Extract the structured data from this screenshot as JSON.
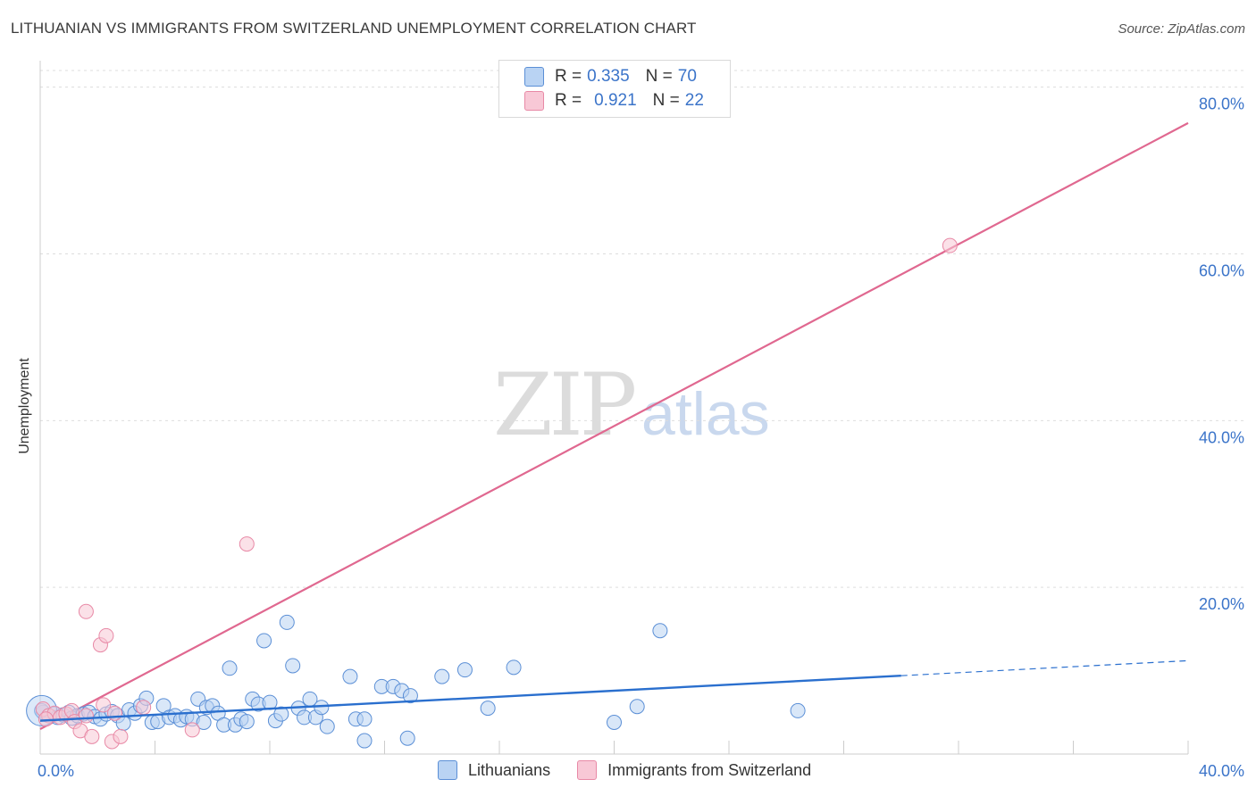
{
  "title": "LITHUANIAN VS IMMIGRANTS FROM SWITZERLAND UNEMPLOYMENT CORRELATION CHART",
  "source": "Source: ZipAtlas.com",
  "watermark": {
    "zip": "ZIP",
    "atlas": "atlas"
  },
  "legend": {
    "blue": {
      "r_label": "R =",
      "r_value": "0.335",
      "n_label": "N =",
      "n_value": "70"
    },
    "pink": {
      "r_label": "R =",
      "r_value": "0.921",
      "n_label": "N =",
      "n_value": "22"
    }
  },
  "bottom_legend": {
    "blue": "Lithuanians",
    "pink": "Immigrants from Switzerland"
  },
  "colors": {
    "blue_fill": "#b9d3f3",
    "blue_stroke": "#5b8fd6",
    "blue_line": "#2a6fce",
    "pink_fill": "#f8c8d6",
    "pink_stroke": "#e889a6",
    "pink_line": "#e06890",
    "tick_label": "#3b74c9",
    "grid": "#dddddd"
  },
  "chart_data": {
    "type": "scatter",
    "title": "LITHUANIAN VS IMMIGRANTS FROM SWITZERLAND UNEMPLOYMENT CORRELATION CHART",
    "xlabel": "",
    "ylabel": "Unemployment",
    "xlim": [
      0,
      40
    ],
    "ylim": [
      0,
      82
    ],
    "x_tick_labels": [
      {
        "value": 0,
        "label": "0.0%"
      },
      {
        "value": 40,
        "label": "40.0%"
      }
    ],
    "y_tick_labels": [
      {
        "value": 20,
        "label": "20.0%"
      },
      {
        "value": 40,
        "label": "40.0%"
      },
      {
        "value": 60,
        "label": "60.0%"
      },
      {
        "value": 80,
        "label": "80.0%"
      }
    ],
    "series": [
      {
        "name": "Lithuanians",
        "r": 0.335,
        "n": 70,
        "trend": {
          "x0": 0,
          "y0": 4.0,
          "x1": 30,
          "y1": 9.4,
          "dash_x1": 40,
          "dash_y1": 11.2
        },
        "points": [
          [
            0.1,
            5.0
          ],
          [
            0.3,
            4.6
          ],
          [
            0.5,
            4.8
          ],
          [
            0.6,
            4.4
          ],
          [
            0.8,
            4.7
          ],
          [
            1.0,
            5.0
          ],
          [
            1.1,
            4.3
          ],
          [
            1.3,
            4.6
          ],
          [
            1.5,
            4.8
          ],
          [
            1.7,
            5.0
          ],
          [
            1.9,
            4.5
          ],
          [
            2.1,
            4.2
          ],
          [
            2.3,
            4.8
          ],
          [
            2.5,
            5.1
          ],
          [
            2.7,
            4.6
          ],
          [
            2.9,
            3.7
          ],
          [
            3.1,
            5.3
          ],
          [
            3.3,
            4.9
          ],
          [
            3.5,
            5.8
          ],
          [
            3.7,
            6.7
          ],
          [
            3.9,
            3.8
          ],
          [
            4.1,
            3.9
          ],
          [
            4.3,
            5.8
          ],
          [
            4.5,
            4.4
          ],
          [
            4.7,
            4.6
          ],
          [
            4.9,
            4.1
          ],
          [
            5.1,
            4.5
          ],
          [
            5.3,
            4.2
          ],
          [
            5.5,
            6.6
          ],
          [
            5.7,
            3.8
          ],
          [
            5.8,
            5.6
          ],
          [
            6.0,
            5.8
          ],
          [
            6.2,
            4.9
          ],
          [
            6.4,
            3.5
          ],
          [
            6.6,
            10.3
          ],
          [
            6.8,
            3.5
          ],
          [
            7.0,
            4.2
          ],
          [
            7.2,
            3.9
          ],
          [
            7.4,
            6.6
          ],
          [
            7.6,
            6.0
          ],
          [
            7.8,
            13.6
          ],
          [
            8.0,
            6.2
          ],
          [
            8.2,
            4.0
          ],
          [
            8.4,
            4.8
          ],
          [
            8.6,
            15.8
          ],
          [
            8.8,
            10.6
          ],
          [
            9.0,
            5.5
          ],
          [
            9.2,
            4.4
          ],
          [
            9.4,
            6.6
          ],
          [
            9.6,
            4.4
          ],
          [
            9.8,
            5.6
          ],
          [
            10.0,
            3.3
          ],
          [
            10.8,
            9.3
          ],
          [
            11.0,
            4.2
          ],
          [
            11.3,
            1.6
          ],
          [
            11.3,
            4.2
          ],
          [
            11.9,
            8.1
          ],
          [
            12.3,
            8.1
          ],
          [
            12.6,
            7.6
          ],
          [
            12.8,
            1.9
          ],
          [
            12.9,
            7.0
          ],
          [
            14.0,
            9.3
          ],
          [
            14.8,
            10.1
          ],
          [
            15.6,
            5.5
          ],
          [
            16.5,
            10.4
          ],
          [
            20.0,
            3.8
          ],
          [
            20.8,
            5.7
          ],
          [
            21.6,
            14.8
          ],
          [
            26.4,
            5.2
          ],
          [
            0.05,
            5.2
          ]
        ]
      },
      {
        "name": "Immigrants from Switzerland",
        "r": 0.921,
        "n": 22,
        "trend": {
          "x0": 0,
          "y0": 3.0,
          "x1": 40,
          "y1": 75.7
        },
        "points": [
          [
            0.1,
            5.4
          ],
          [
            0.3,
            4.6
          ],
          [
            0.5,
            4.9
          ],
          [
            0.7,
            4.4
          ],
          [
            0.9,
            4.8
          ],
          [
            1.1,
            5.2
          ],
          [
            1.2,
            3.9
          ],
          [
            1.4,
            2.8
          ],
          [
            1.6,
            4.6
          ],
          [
            1.6,
            17.1
          ],
          [
            1.8,
            2.1
          ],
          [
            2.1,
            13.1
          ],
          [
            2.2,
            5.9
          ],
          [
            2.3,
            14.2
          ],
          [
            2.5,
            1.5
          ],
          [
            2.6,
            4.9
          ],
          [
            2.8,
            2.1
          ],
          [
            3.6,
            5.6
          ],
          [
            5.3,
            2.9
          ],
          [
            7.2,
            25.2
          ],
          [
            31.7,
            61.0
          ],
          [
            0.2,
            4.2
          ]
        ]
      }
    ]
  }
}
